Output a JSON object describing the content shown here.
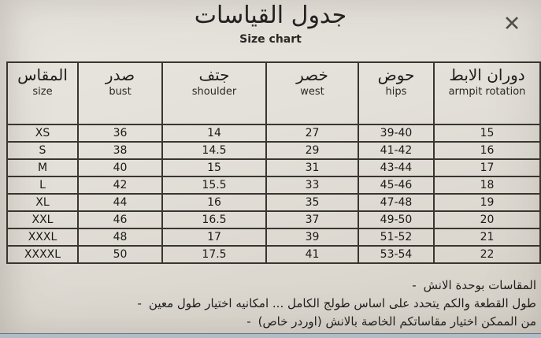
{
  "page": {
    "title_ar": "جدول القياسات",
    "title_en": "Size chart",
    "close_glyph": "✕"
  },
  "table": {
    "columns": [
      {
        "ar": "المقاس",
        "en": "size"
      },
      {
        "ar": "صدر",
        "en": "bust"
      },
      {
        "ar": "جتف",
        "en": "shoulder"
      },
      {
        "ar": "خصر",
        "en": "west"
      },
      {
        "ar": "حوض",
        "en": "hips"
      },
      {
        "ar": "دوران الابط",
        "en": "armpit rotation"
      }
    ],
    "rows": [
      [
        "XS",
        "36",
        "14",
        "27",
        "39-40",
        "15"
      ],
      [
        "S",
        "38",
        "14.5",
        "29",
        "41-42",
        "16"
      ],
      [
        "M",
        "40",
        "15",
        "31",
        "43-44",
        "17"
      ],
      [
        "L",
        "42",
        "15.5",
        "33",
        "45-46",
        "18"
      ],
      [
        "XL",
        "44",
        "16",
        "35",
        "47-48",
        "19"
      ],
      [
        "XXL",
        "46",
        "16.5",
        "37",
        "49-50",
        "20"
      ],
      [
        "XXXL",
        "48",
        "17",
        "39",
        "51-52",
        "21"
      ],
      [
        "XXXXL",
        "50",
        "17.5",
        "41",
        "53-54",
        "22"
      ]
    ]
  },
  "notes": {
    "bullet": "-",
    "items": [
      "المقاسات بوحدة الانش",
      "طول القطعة والكم يتحدد على اساس طولج الكامل ... امكانيه اختيار طول معين",
      "من الممكن اختيار مقاساتكم الخاصة بالانش (اوردر خاص)"
    ]
  }
}
